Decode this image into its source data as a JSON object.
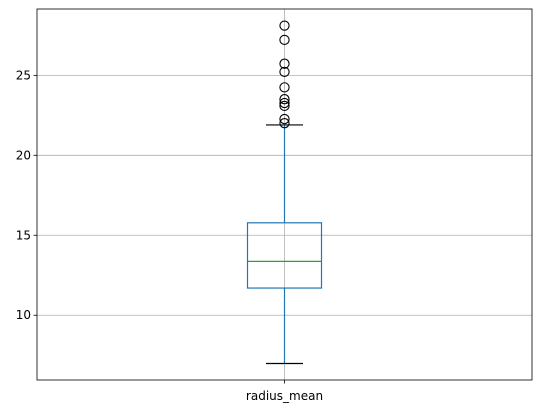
{
  "chart_data": {
    "type": "box",
    "title": "",
    "xlabel": "",
    "ylabel": "",
    "categories": [
      "radius_mean"
    ],
    "ylim": [
      5.95,
      29.15
    ],
    "yticks": [
      10,
      15,
      20,
      25
    ],
    "grid": true,
    "legend": "none",
    "boxes": [
      {
        "category": "radius_mean",
        "whisker_low": 6.98,
        "q1": 11.7,
        "median": 13.37,
        "q3": 15.78,
        "whisker_high": 21.9,
        "outliers": [
          22.01,
          22.27,
          23.09,
          23.27,
          23.51,
          24.25,
          25.22,
          25.73,
          27.22,
          28.11
        ]
      }
    ],
    "colors": {
      "box": "#1f77b4",
      "median": "#2ca02c",
      "whisker": "#1f77b4",
      "cap": "#000000",
      "outlier": "#000000",
      "grid": "#b0b0b0",
      "axes": "#000000"
    }
  }
}
